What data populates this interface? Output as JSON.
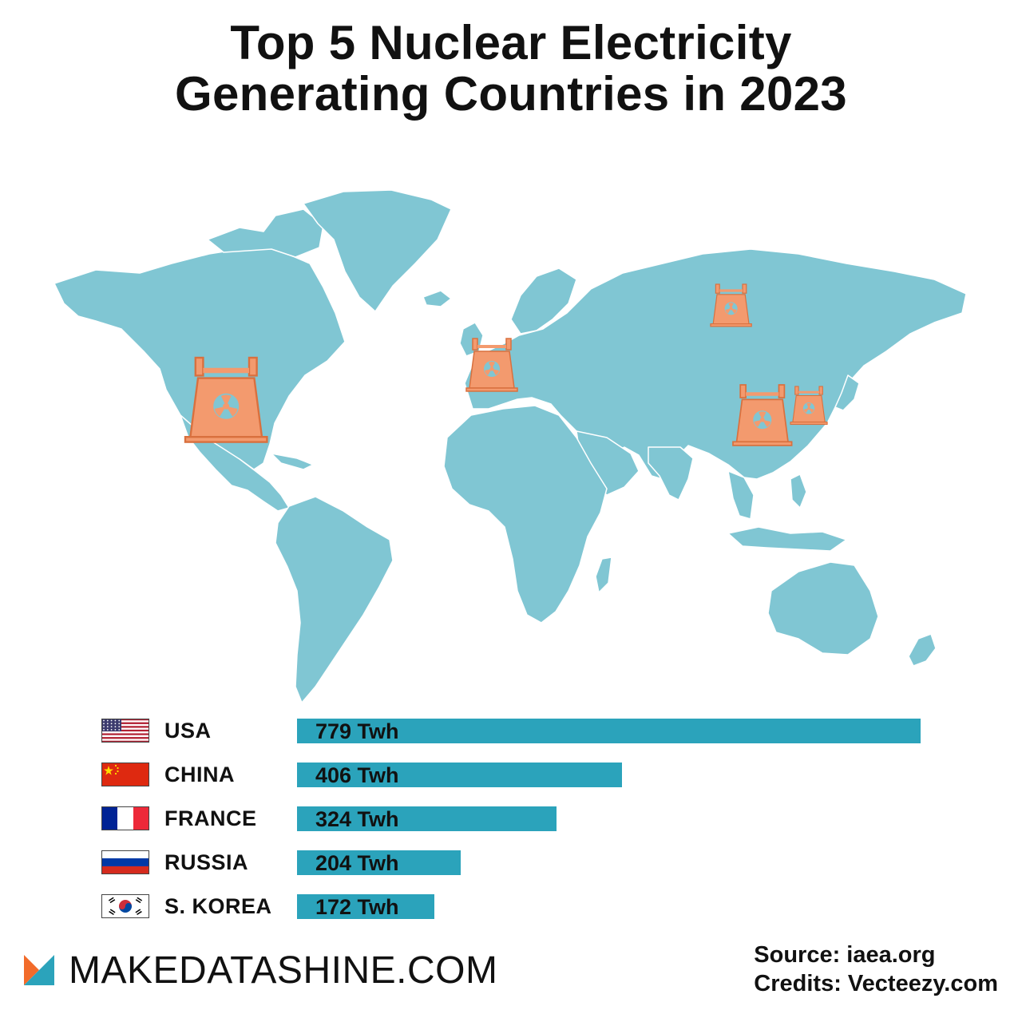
{
  "title_line1": "Top 5 Nuclear Electricity",
  "title_line2": "Generating Countries in 2023",
  "colors": {
    "land": "#80c6d3",
    "bar": "#2ba3bb",
    "plant": "#f39a6e",
    "plant_outline": "#d9703e"
  },
  "chart_data": {
    "type": "bar",
    "orientation": "horizontal",
    "unit": "Twh",
    "categories": [
      "USA",
      "CHINA",
      "FRANCE",
      "RUSSIA",
      "S. KOREA"
    ],
    "values": [
      779,
      406,
      324,
      204,
      172
    ],
    "value_labels": [
      "779 Twh",
      "406 Twh",
      "324 Twh",
      "204 Twh",
      "172 Twh"
    ],
    "flags": [
      "usa-flag-icon",
      "china-flag-icon",
      "france-flag-icon",
      "russia-flag-icon",
      "south-korea-flag-icon"
    ]
  },
  "map": {
    "markers": [
      "usa",
      "france",
      "russia",
      "china",
      "south-korea"
    ],
    "icon": "nuclear-plant-icon"
  },
  "footer": {
    "brand": "MAKEDATASHINE.COM",
    "source": "Source: iaea.org",
    "credits": "Credits: Vecteezy.com"
  }
}
